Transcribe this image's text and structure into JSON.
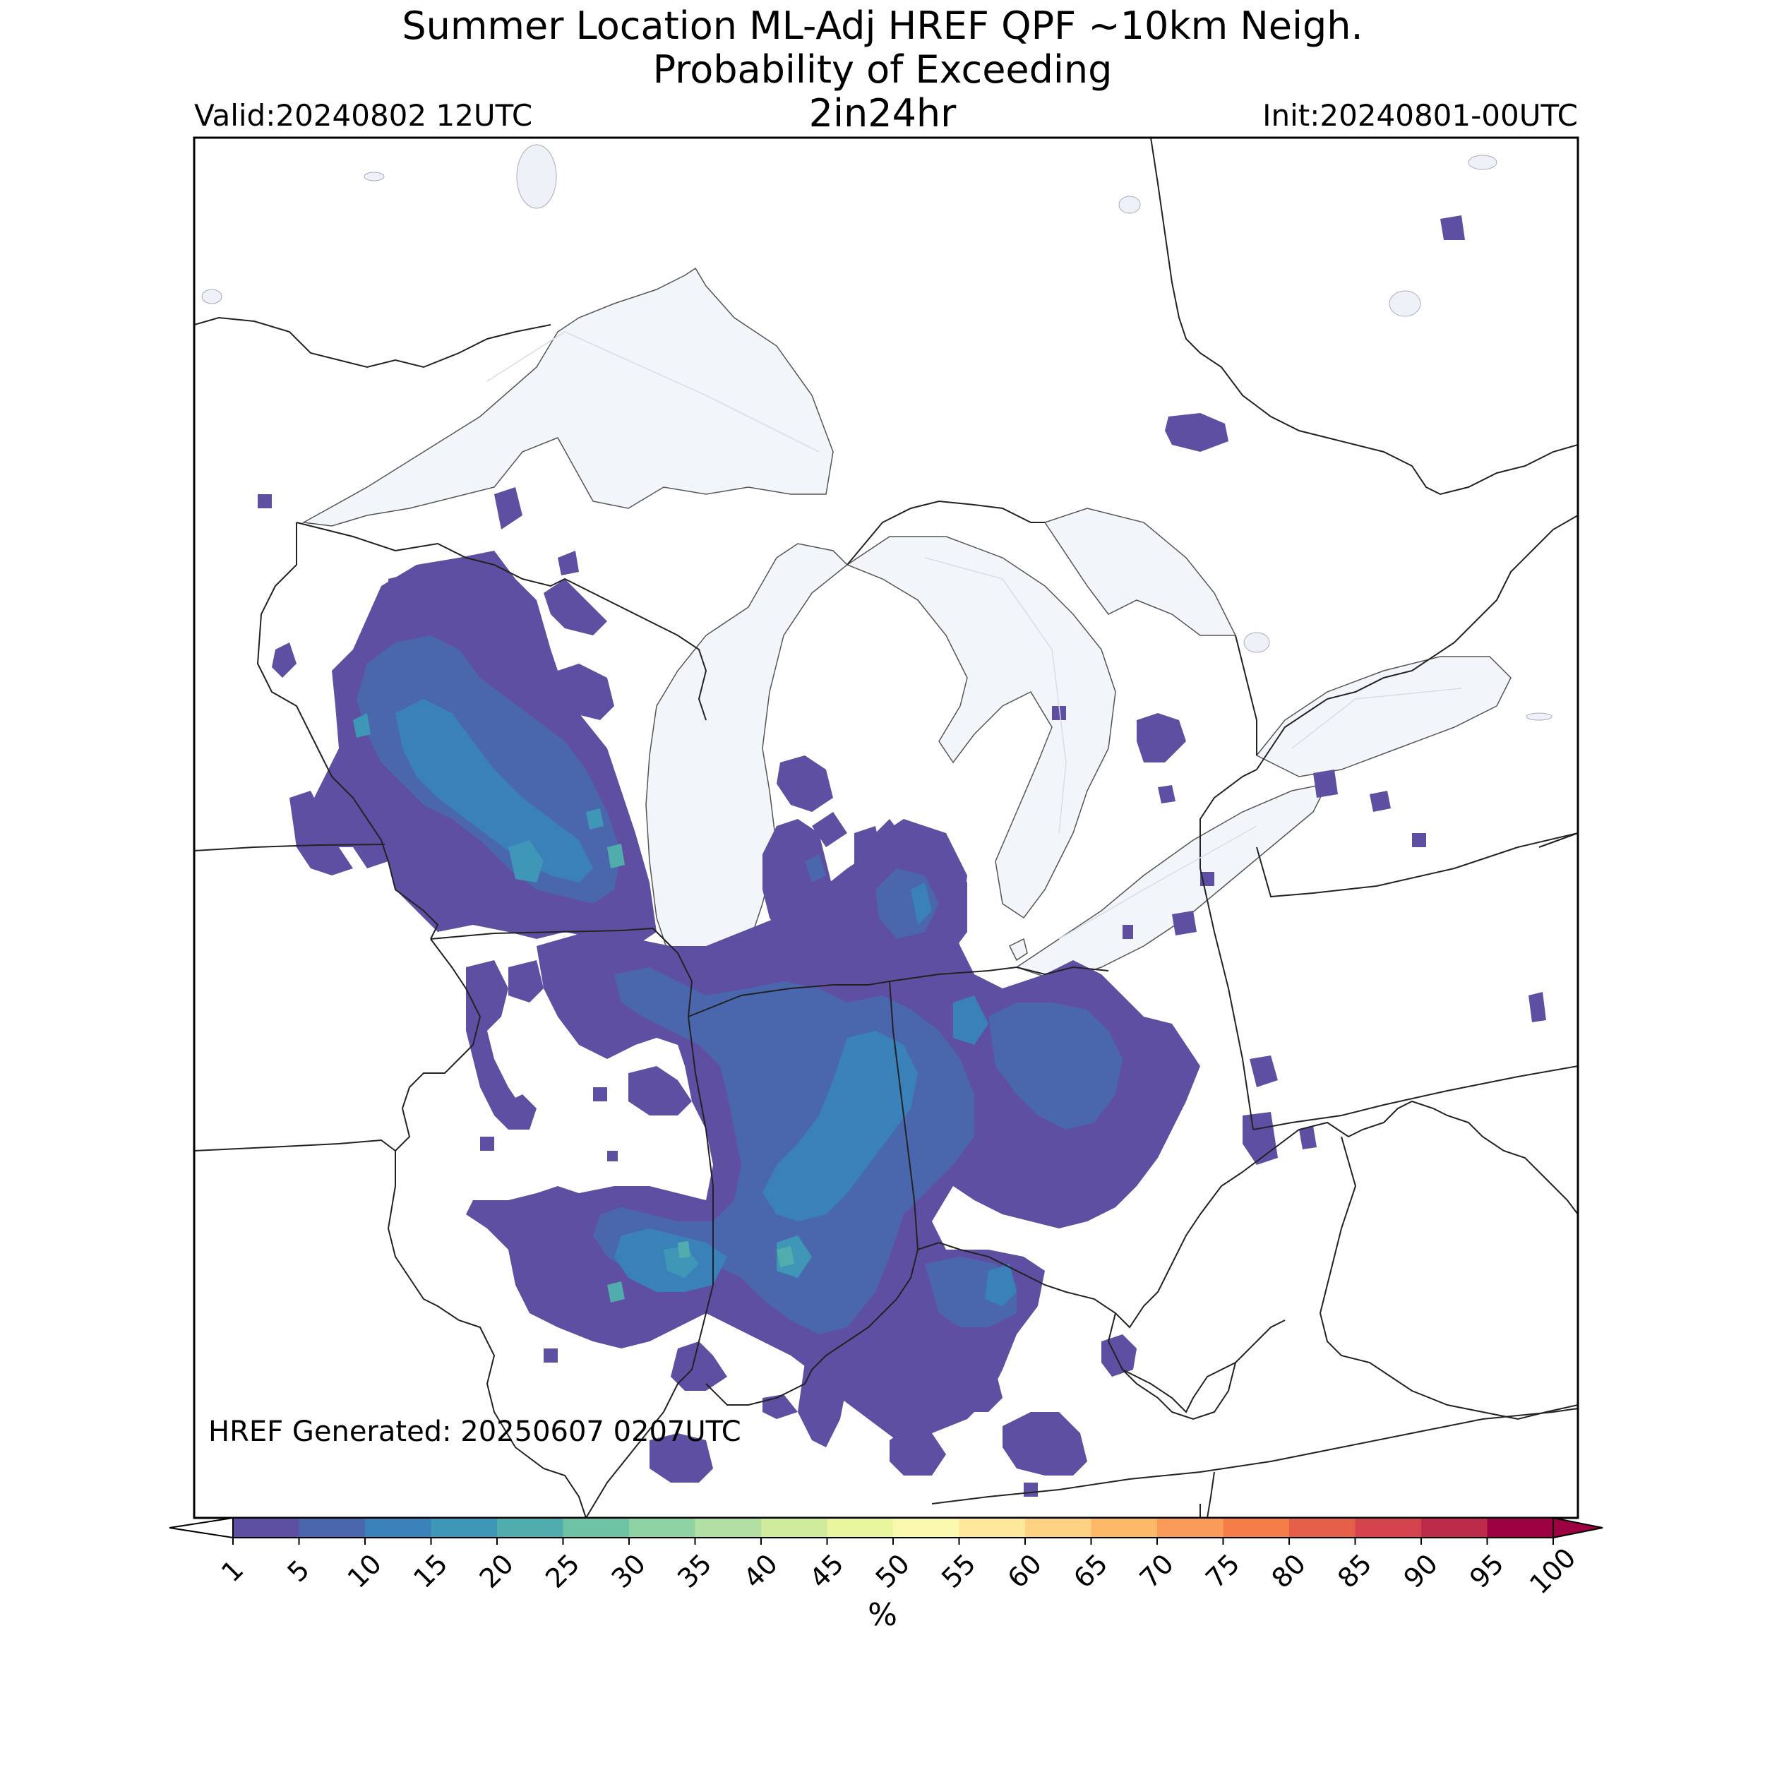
{
  "title": {
    "line1": "Summer Location ML-Adj HREF QPF ~10km Neigh.",
    "line2": "Probability of Exceeding",
    "line3": "2in24hr"
  },
  "valid": "Valid:20240802 12UTC",
  "init": "Init:20240801-00UTC",
  "generated": "HREF Generated: 20250607 0207UTC",
  "colorbar": {
    "label": "%",
    "ticks": [
      "1",
      "5",
      "10",
      "15",
      "20",
      "25",
      "30",
      "35",
      "40",
      "45",
      "50",
      "55",
      "60",
      "65",
      "70",
      "75",
      "80",
      "85",
      "90",
      "95",
      "100"
    ],
    "colors": [
      "#5e4fa2",
      "#4a67ad",
      "#3a80b9",
      "#3e97b7",
      "#51acad",
      "#6ec3a4",
      "#8fd2a4",
      "#b2e0a2",
      "#cfec9d",
      "#e9f59c",
      "#fbf8b0",
      "#fee89a",
      "#fdd282",
      "#fdb868",
      "#fb9b5a",
      "#f57d4a",
      "#e65f49",
      "#d4434e",
      "#bd2b4a",
      "#9e0142"
    ],
    "under_color": "#ffffff",
    "over_color": "#9e0142"
  },
  "map_colors": {
    "water": "#f2f6fb",
    "boundary": "#222222"
  }
}
